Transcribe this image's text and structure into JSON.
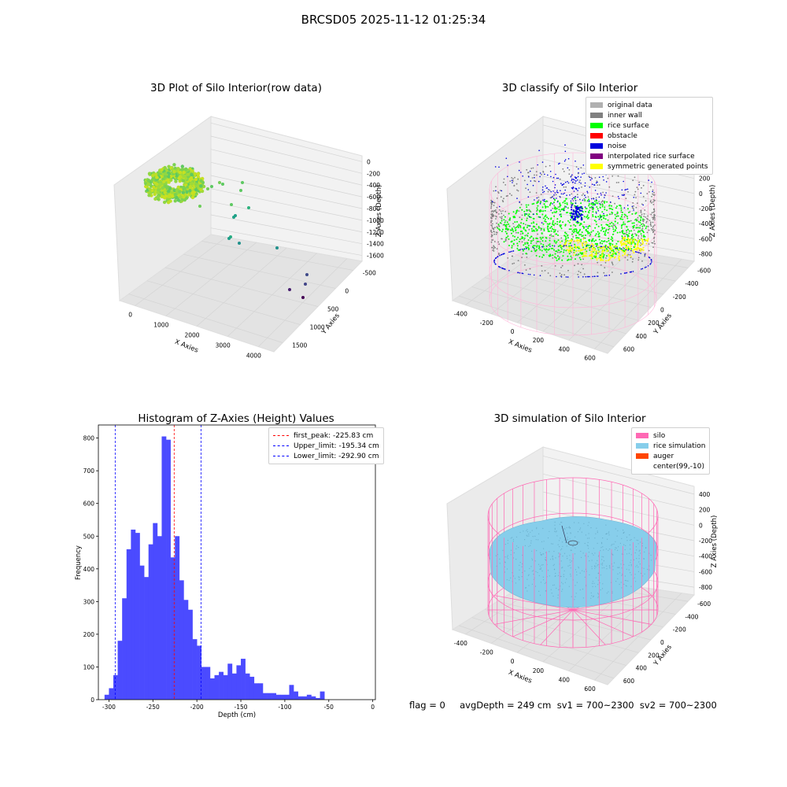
{
  "figure": {
    "suptitle": "BRCSD05 2025-11-12 01:25:34",
    "footer": "flag = 0     avgDepth = 249 cm  sv1 = 700~2300  sv2 = 700~2300"
  },
  "colors": {
    "hist_bar": "#4b4bff",
    "first_peak": "#ff0000",
    "limits": "#0000ff",
    "silo": "#ff69b4",
    "rice_simulation": "#87ceeb",
    "auger": "#ff4500",
    "original_data": "#b0b0b0",
    "inner_wall": "#808080",
    "rice_surface": "#00ff00",
    "obstacle": "#ff0000",
    "noise": "#0000dd",
    "interpolated_rice_surface": "#800080",
    "symmetric_generated_points": "#ffff00"
  },
  "chart_data": [
    {
      "type": "scatter",
      "projection": "3d",
      "title": "3D Plot of Silo Interior(row data)",
      "xlabel": "X Axies",
      "ylabel": "Y Axies",
      "zlabel": "Z Axies (Depth)",
      "xticks": [
        "0",
        "1000",
        "2000",
        "3000",
        "4000"
      ],
      "yticks": [
        "-500",
        "0",
        "500",
        "1000",
        "1500"
      ],
      "zticks": [
        "0",
        "-200",
        "-400",
        "-600",
        "-800",
        "-1000",
        "-1200",
        "-1400",
        "-1600"
      ],
      "colormap": "viridis (colored by depth)"
    },
    {
      "type": "scatter",
      "projection": "3d",
      "title": "3D classify of Silo Interior",
      "xlabel": "X Axies",
      "ylabel": "Y Axies",
      "zlabel": "Z Axies (Depth)",
      "xticks": [
        "-400",
        "-200",
        "0",
        "200",
        "400",
        "600"
      ],
      "yticks": [
        "-600",
        "-400",
        "-200",
        "0",
        "200",
        "400",
        "600"
      ],
      "zticks": [
        "400",
        "200",
        "0",
        "-200",
        "-400",
        "-600",
        "-800"
      ],
      "legend": [
        "original data",
        "inner wall",
        "rice surface",
        "obstacle",
        "noise",
        "interpolated rice surface",
        "symmetric generated points"
      ],
      "legend_position": "top-right"
    },
    {
      "type": "bar",
      "title": "Histogram of Z-Axies (Height) Values",
      "xlabel": "Depth (cm)",
      "ylabel": "Frequency",
      "xlim": [
        -312,
        3
      ],
      "ylim": [
        0,
        840
      ],
      "xticks": [
        -300,
        -250,
        -200,
        -150,
        -100,
        -50,
        0
      ],
      "yticks": [
        0,
        100,
        200,
        300,
        400,
        500,
        600,
        700,
        800
      ],
      "bin_start": -305,
      "bin_width": 5,
      "values": [
        15,
        35,
        75,
        180,
        310,
        460,
        520,
        510,
        410,
        375,
        475,
        540,
        500,
        805,
        795,
        435,
        500,
        365,
        305,
        275,
        185,
        165,
        100,
        100,
        65,
        75,
        85,
        75,
        110,
        80,
        105,
        125,
        80,
        70,
        50,
        50,
        20,
        20,
        20,
        15,
        15,
        15,
        45,
        25,
        10,
        10,
        15,
        10,
        5,
        25
      ],
      "vlines": [
        {
          "label": "first_peak: -225.83 cm",
          "x": -225.83,
          "color": "red"
        },
        {
          "label": "Upper_limit: -195.34 cm",
          "x": -195.34,
          "color": "blue"
        },
        {
          "label": "Lower_limit: -292.90 cm",
          "x": -292.9,
          "color": "blue"
        }
      ],
      "legend_position": "top-right",
      "grid": false
    },
    {
      "type": "surface",
      "projection": "3d",
      "title": "3D simulation of Silo Interior",
      "xlabel": "X Axies",
      "ylabel": "Y Axies",
      "zlabel": "Z Axies (Depth)",
      "xticks": [
        "-400",
        "-200",
        "0",
        "200",
        "400",
        "600"
      ],
      "yticks": [
        "-600",
        "-400",
        "-200",
        "0",
        "200",
        "400",
        "600"
      ],
      "zticks": [
        "400",
        "200",
        "0",
        "-200",
        "-400",
        "-600",
        "-800"
      ],
      "legend": [
        "silo",
        "rice simulation",
        "auger",
        "center(99,-10)"
      ],
      "legend_position": "top-right"
    }
  ]
}
